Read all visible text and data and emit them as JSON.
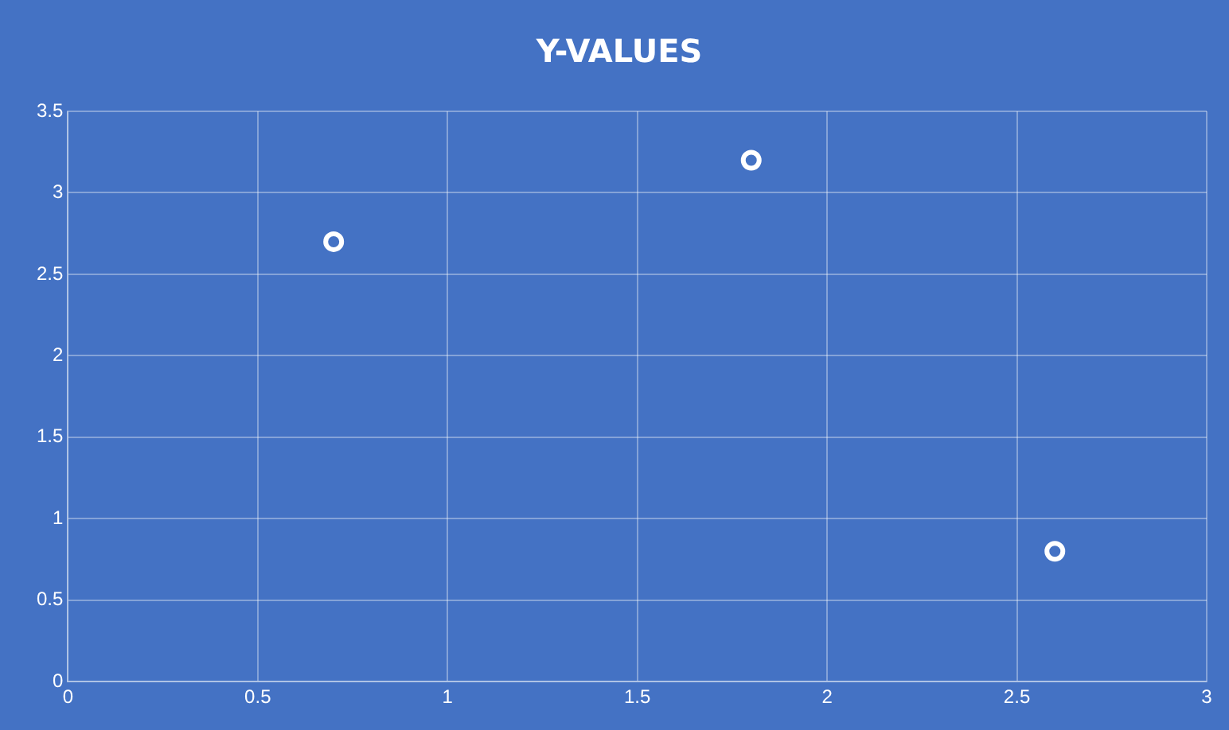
{
  "chart_data": {
    "type": "scatter",
    "title": "Y-VALUES",
    "x": [
      0.7,
      1.8,
      2.6
    ],
    "series": [
      {
        "color": "#ffffff",
        "values": [
          2.7,
          3.2,
          0.8
        ]
      }
    ],
    "xlim": [
      0,
      3
    ],
    "xticks": [
      0,
      0.5,
      1,
      1.5,
      2,
      2.5,
      3
    ],
    "ylim": [
      0,
      3.5
    ],
    "yticks": [
      0,
      0.5,
      1,
      1.5,
      2,
      2.5,
      3,
      3.5
    ],
    "grid": true,
    "marker": "circle"
  }
}
